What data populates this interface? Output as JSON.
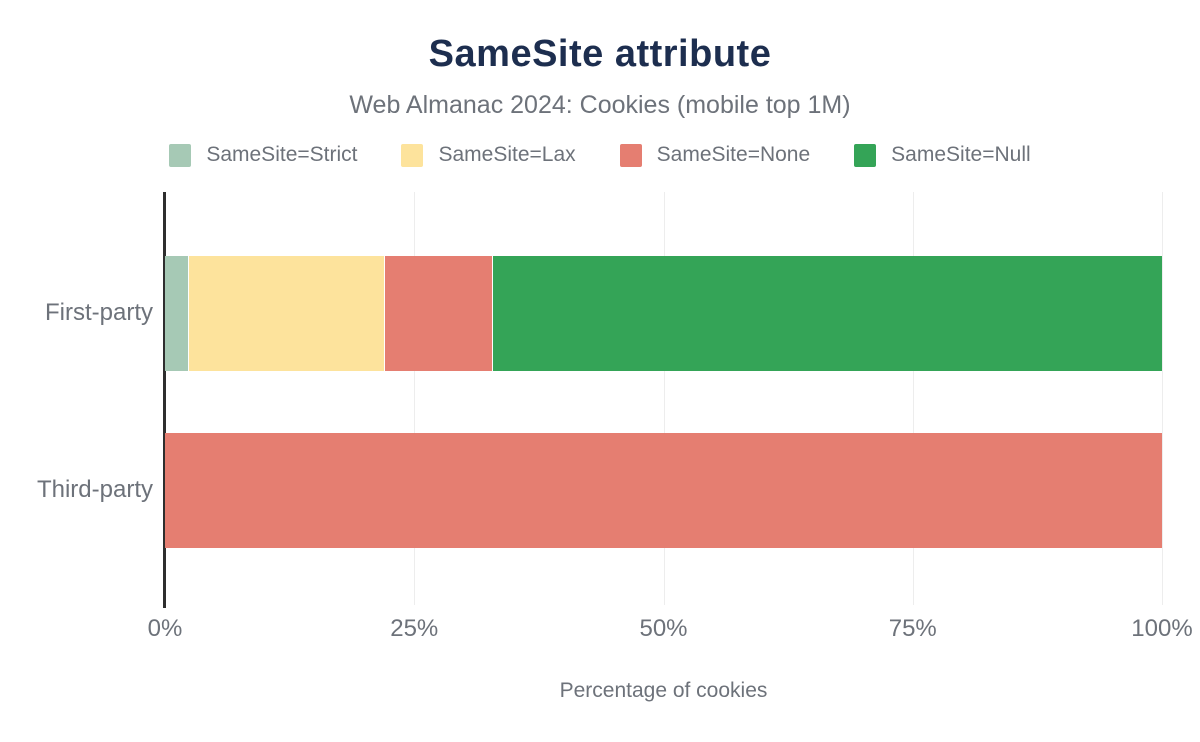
{
  "chart_data": {
    "type": "bar",
    "orientation": "horizontal",
    "stacked": true,
    "title": "SameSite attribute",
    "subtitle": "Web Almanac 2024: Cookies (mobile top 1M)",
    "xlabel": "Percentage of cookies",
    "categories": [
      "First-party",
      "Third-party"
    ],
    "series": [
      {
        "name": "SameSite=Strict",
        "color": "#a6c9b5",
        "values": [
          2.4,
          0
        ]
      },
      {
        "name": "SameSite=Lax",
        "color": "#fde39c",
        "values": [
          19.7,
          0
        ]
      },
      {
        "name": "SameSite=None",
        "color": "#e57e71",
        "values": [
          10.8,
          100
        ]
      },
      {
        "name": "SameSite=Null",
        "color": "#34a457",
        "values": [
          67.1,
          0
        ]
      }
    ],
    "x_ticks": [
      {
        "label": "0%",
        "value": 0
      },
      {
        "label": "25%",
        "value": 25
      },
      {
        "label": "50%",
        "value": 50
      },
      {
        "label": "75%",
        "value": 75
      },
      {
        "label": "100%",
        "value": 100
      }
    ],
    "xlim": [
      0,
      100
    ],
    "grid": true,
    "legend_position": "top",
    "colors": {
      "title": "#1d2e4f",
      "text": "#6d727a",
      "axis": "#2e2e2e",
      "gridline": "#ededed",
      "background": "#ffffff"
    }
  }
}
